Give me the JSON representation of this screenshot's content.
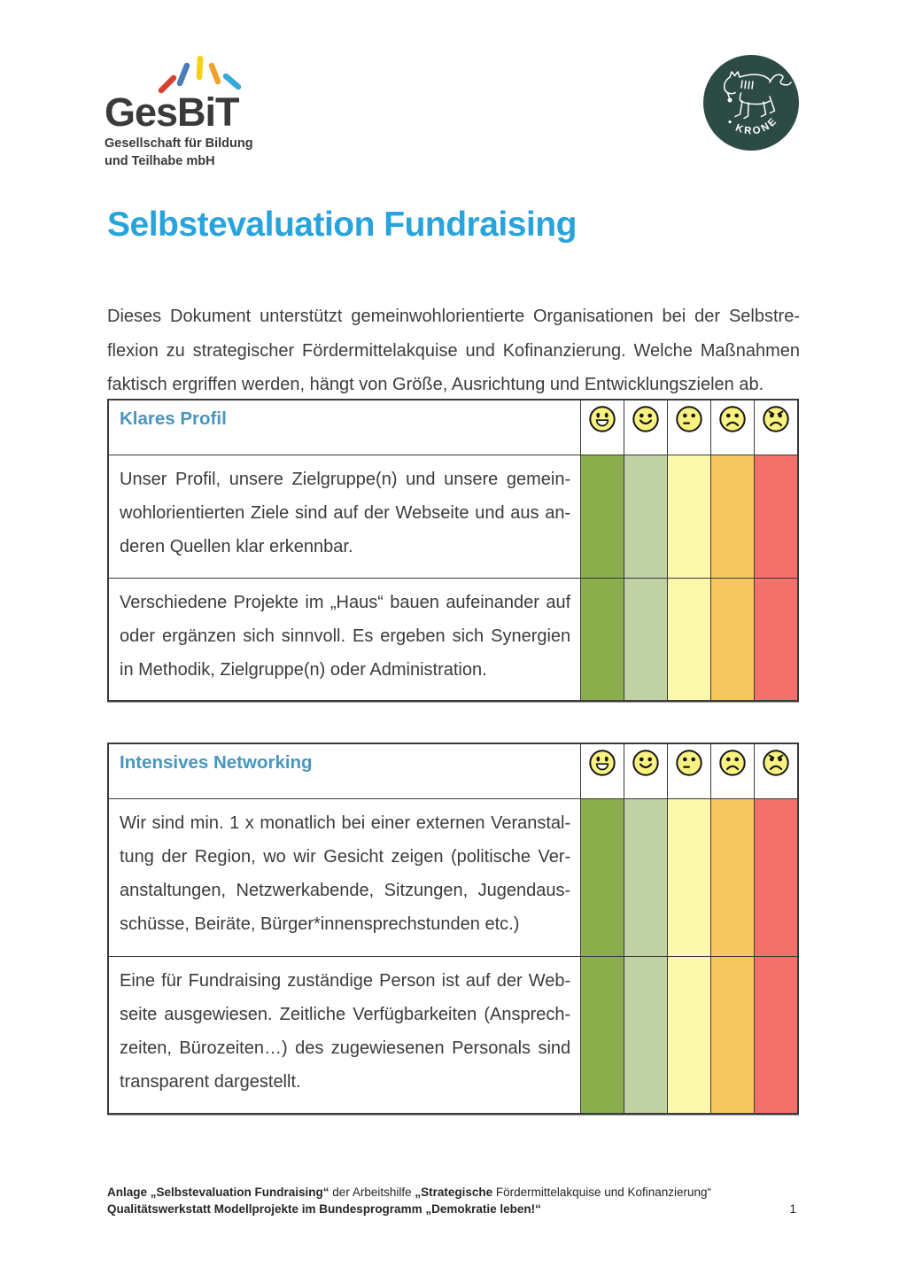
{
  "logos": {
    "gesbit": {
      "name": "GesBiT",
      "tagline_line1": "Gesellschaft für Bildung",
      "tagline_line2": "und Teilhabe mbH"
    },
    "kroner": {
      "label": "2 • KRONER"
    }
  },
  "title": "Selbstevaluation Fundraising",
  "intro": "Dieses Dokument unterstützt gemeinwohlorientierte Organisationen bei der Selbstre­flexion zu strategischer Fördermittelakquise und Kofinanzierung. Welche Maßnahmen faktisch ergriffen werden, hängt von Größe, Ausrichtung und Entwicklungszielen ab.",
  "rating_scale": {
    "smileys": [
      "very-happy",
      "happy",
      "neutral",
      "sad",
      "very-sad"
    ]
  },
  "tables": [
    {
      "title": "Klares Profil",
      "rows": [
        "Unser Profil, unsere Zielgruppe(n) und unsere gemein­wohlorientierten Ziele sind auf der Webseite und aus an­deren Quellen klar erkennbar.",
        "Verschiedene Projekte im „Haus“ bauen aufeinander auf oder ergänzen sich sinnvoll. Es ergeben sich Synergien in Methodik, Zielgruppe(n) oder Administration."
      ]
    },
    {
      "title": "Intensives Networking",
      "rows": [
        "Wir sind min. 1 x monatlich bei einer externen Veranstal­tung der Region, wo wir Gesicht zeigen (politische Ver­anstaltungen, Netzwerkabende, Sitzungen, Jugendaus­schüsse, Beiräte, Bürger*innensprechstunden etc.)",
        "Eine für Fundraising zuständige Person ist auf der Web­seite ausgewiesen. Zeitliche Verfügbarkeiten (Ansprech­zeiten, Bürozeiten…) des zugewiesenen Personals sind transparent dargestellt."
      ]
    }
  ],
  "footer": {
    "line1_segments": [
      {
        "text": "Anlage „Selbstevaluation Fundraising“",
        "bold": true
      },
      {
        "text": " der Arbeitshilfe ",
        "bold": false
      },
      {
        "text": "„Strategische",
        "bold": true
      },
      {
        "text": " Fördermittelakquise und Kofinanzierung“",
        "bold": false
      }
    ],
    "line2_segments": [
      {
        "text": "Qualitätswerkstatt Modellprojekte im Bundesprogramm „Demokratie leben!“",
        "bold": true
      }
    ],
    "page_number": "1"
  },
  "colors": {
    "title_blue": "#29a3dc",
    "table_header_blue": "#4796be",
    "rating": [
      "#8bad4b",
      "#c0d1a3",
      "#fbf8ac",
      "#f7c862",
      "#f4716b"
    ],
    "smiley_yellow": "#f9f180",
    "kroner_teal": "#2c4b45",
    "gesbit_burst": [
      "#d6402f",
      "#4a7cb8",
      "#f6d013",
      "#efa22d",
      "#38a8dd"
    ],
    "logo_text": "#3a3a39"
  }
}
